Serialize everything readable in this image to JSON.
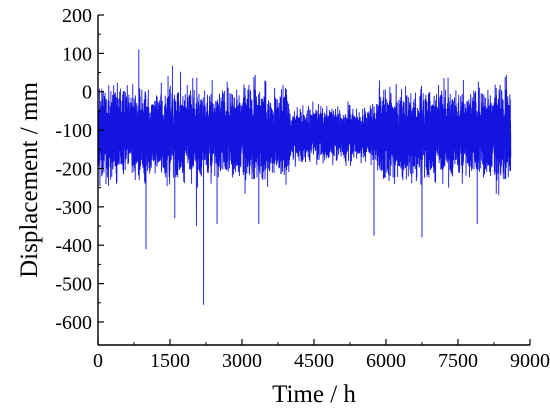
{
  "chart_data": {
    "type": "line",
    "title": "",
    "xlabel": "Time / h",
    "ylabel": "Displacement / mm",
    "xlim": [
      0,
      9000
    ],
    "ylim": [
      -660,
      200
    ],
    "xticks": [
      0,
      1500,
      3000,
      4500,
      6000,
      7500,
      9000
    ],
    "yticks": [
      200,
      100,
      0,
      -100,
      -200,
      -300,
      -400,
      -500,
      -600
    ],
    "grid": false,
    "legend": "none",
    "series": [
      {
        "color": "#1414e0",
        "x_range": [
          0,
          8600
        ],
        "n_points": 8600,
        "baseline": -110,
        "typical_band": [
          -240,
          5
        ],
        "extreme_points": [
          {
            "x": 850,
            "y": 110
          },
          {
            "x": 1550,
            "y": 68
          },
          {
            "x": 1720,
            "y": 52
          },
          {
            "x": 2200,
            "y": 35
          },
          {
            "x": 1000,
            "y": -410
          },
          {
            "x": 1600,
            "y": -330
          },
          {
            "x": 2050,
            "y": -350
          },
          {
            "x": 2200,
            "y": -555
          },
          {
            "x": 2480,
            "y": -345
          },
          {
            "x": 3350,
            "y": -345
          },
          {
            "x": 5750,
            "y": -375
          },
          {
            "x": 6750,
            "y": -380
          },
          {
            "x": 7900,
            "y": -345
          },
          {
            "x": 8350,
            "y": -270
          }
        ]
      }
    ]
  }
}
